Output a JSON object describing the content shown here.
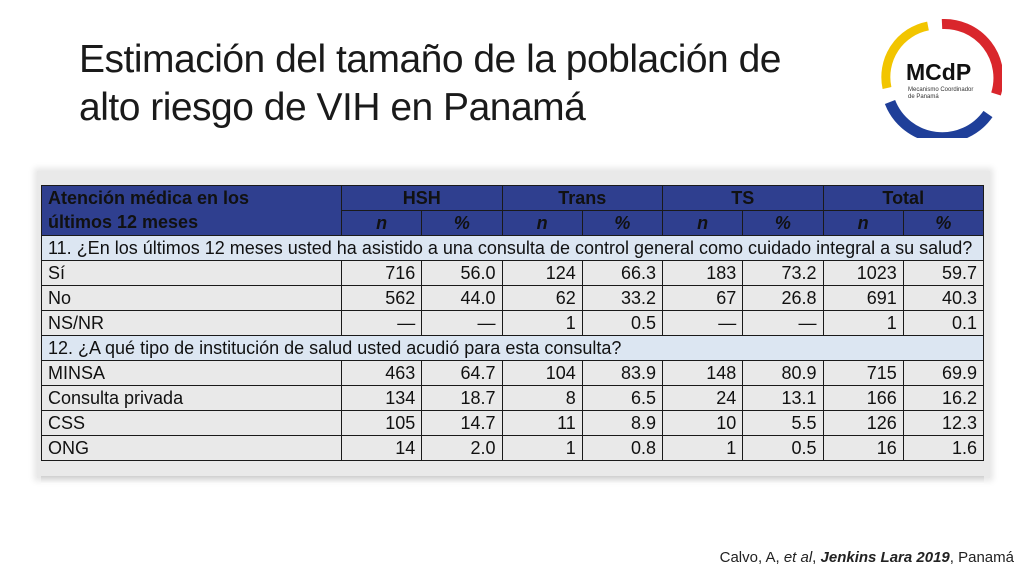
{
  "title": {
    "line1": "Estimación del tamaño de la población de",
    "line2": "alto riesgo de VIH en Panamá"
  },
  "logo": {
    "text": "MCdP",
    "subtext_line1": "Mecanismo Coordinador",
    "subtext_line2": "de Panamá",
    "colors": {
      "yellow": "#f2c500",
      "red": "#d9262c",
      "blue": "#1f3f99"
    }
  },
  "table": {
    "header_label_line1": "Atención médica en los",
    "header_label_line2": "últimos 12 meses",
    "groups": [
      "HSH",
      "Trans",
      "TS",
      "Total"
    ],
    "subheaders": [
      "n",
      "%",
      "n",
      "%",
      "n",
      "%",
      "n",
      "%"
    ],
    "question11": "11. ¿En los últimos 12 meses usted ha asistido a una consulta de control general como cuidado integral a su salud?",
    "rows11": [
      {
        "label": "Sí",
        "cells": [
          "716",
          "56.0",
          "124",
          "66.3",
          "183",
          "73.2",
          "1023",
          "59.7"
        ]
      },
      {
        "label": "No",
        "cells": [
          "562",
          "44.0",
          "62",
          "33.2",
          "67",
          "26.8",
          "691",
          "40.3"
        ]
      },
      {
        "label": "NS/NR",
        "cells": [
          "—",
          "—",
          "1",
          "0.5",
          "—",
          "—",
          "1",
          "0.1"
        ]
      }
    ],
    "question12": "12. ¿A qué tipo de institución de salud usted acudió para esta consulta?",
    "rows12": [
      {
        "label": "MINSA",
        "cells": [
          "463",
          "64.7",
          "104",
          "83.9",
          "148",
          "80.9",
          "715",
          "69.9"
        ]
      },
      {
        "label": "Consulta privada",
        "cells": [
          "134",
          "18.7",
          "8",
          "6.5",
          "24",
          "13.1",
          "166",
          "16.2"
        ]
      },
      {
        "label": "CSS",
        "cells": [
          "105",
          "14.7",
          "11",
          "8.9",
          "10",
          "5.5",
          "126",
          "12.3"
        ]
      },
      {
        "label": "ONG",
        "cells": [
          "14",
          "2.0",
          "1",
          "0.8",
          "1",
          "0.5",
          "16",
          "1.6"
        ]
      }
    ],
    "colors": {
      "header_bg": "#2f3f8f",
      "question_bg": "#dce6f2"
    }
  },
  "citation": {
    "author": "Calvo, A, ",
    "etal": "et al",
    "comma": ", ",
    "source": "Jenkins Lara 2019",
    "place": ", Panamá"
  }
}
